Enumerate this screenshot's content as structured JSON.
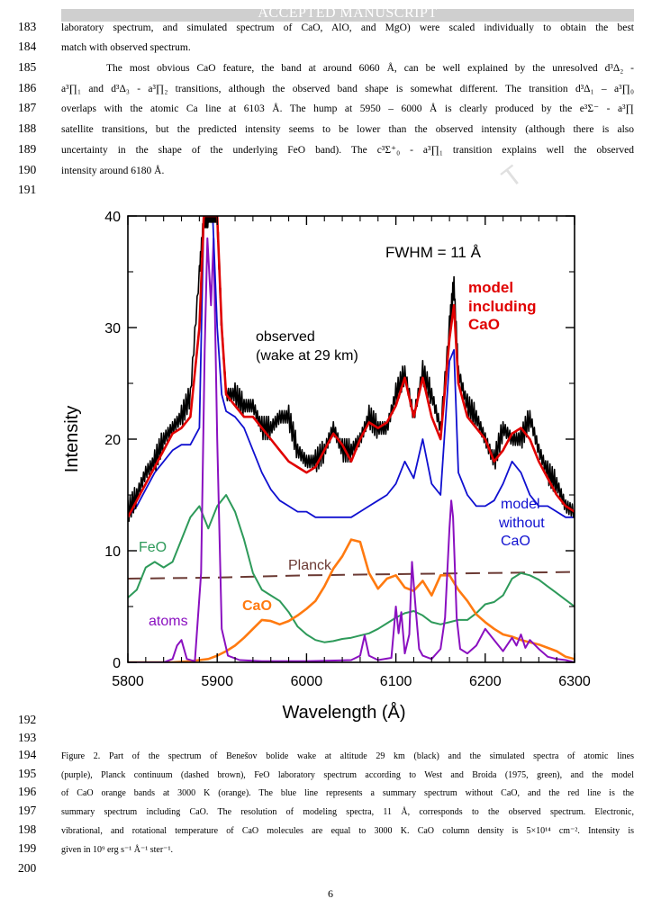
{
  "header": {
    "banner": "ACCEPTED MANUSCRIPT"
  },
  "body_lines": [
    {
      "num": "183",
      "text": "laboratory spectrum, and simulated spectrum of CaO, AlO, and MgO) were scaled individually to obtain the best"
    },
    {
      "num": "184",
      "text": "match with observed spectrum."
    },
    {
      "num": "185",
      "text": "The most obvious CaO feature, the band at around 6060 Å, can be well explained by the unresolved d³Δ₂ -"
    },
    {
      "num": "186",
      "text": "a³∏₁ and d³Δ₃ - a³∏₂ transitions, although the observed band shape is somewhat different. The transition d³Δ₁ – a³∏₀"
    },
    {
      "num": "187",
      "text": "overlaps with the atomic Ca line at 6103 Å. The hump at 5950 – 6000 Å is clearly produced by the e³Σ⁻ - a³∏"
    },
    {
      "num": "188",
      "text": "satellite transitions, but the predicted intensity seems to be lower than the observed intensity (although there is also"
    },
    {
      "num": "189",
      "text": "uncertainty in the shape of the underlying FeO band). The c³Σ⁺₀ - a³∏₁ transition explains well the observed"
    },
    {
      "num": "190",
      "text": "intensity around 6180 Å."
    },
    {
      "num": "191",
      "text": ""
    }
  ],
  "figure_lines": {
    "n192": "192",
    "n193": "193"
  },
  "caption_lines": [
    {
      "num": "194",
      "text": "Figure 2. Part of the spectrum of Benešov bolide wake at altitude 29 km (black) and the simulated spectra of atomic lines"
    },
    {
      "num": "195",
      "text": "(purple), Planck continuum (dashed brown), FeO laboratory spectrum according to West and Broida (1975, green), and the model"
    },
    {
      "num": "196",
      "text": "of CaO orange bands at 3000 K (orange). The blue line represents a summary spectrum without CaO, and the red line is the"
    },
    {
      "num": "197",
      "text": "summary spectrum including CaO. The resolution of modeling spectra, 11 Å, corresponds to the observed spectrum. Electronic,"
    },
    {
      "num": "198",
      "text": "vibrational, and rotational temperature of CaO molecules are equal to 3000 K. CaO column density is 5×10¹⁴ cm⁻². Intensity is"
    },
    {
      "num": "199",
      "text": "given in 10⁹ erg s⁻¹ Å⁻¹ ster⁻¹."
    },
    {
      "num": "200",
      "text": ""
    }
  ],
  "page_number": "6",
  "chart_data": {
    "type": "line",
    "xlabel": "Wavelength (Å)",
    "ylabel": "Intensity",
    "xlim": [
      5800,
      6300
    ],
    "ylim": [
      0,
      40
    ],
    "xticks": [
      "5800",
      "5900",
      "6000",
      "6100",
      "6200",
      "6300"
    ],
    "yticks": [
      "0",
      "10",
      "20",
      "30",
      "40"
    ],
    "annotations": {
      "fwhm": "FWHM = 11 Å",
      "observed": [
        "observed",
        "(wake at 29 km)"
      ],
      "model_cao": [
        "model",
        "including",
        "CaO"
      ],
      "model_nocao": [
        "model",
        "without",
        "CaO"
      ],
      "feo": "FeO",
      "planck": "Planck",
      "cao": "CaO",
      "atoms": "atoms"
    },
    "colors": {
      "observed": "#000000",
      "with_cao": "#e00000",
      "without_cao": "#1010d0",
      "feo": "#2e9a5a",
      "planck": "#6b3a34",
      "cao": "#ff7a10",
      "atoms": "#8a10c0"
    },
    "series": [
      {
        "key": "observed",
        "x": [
          5800,
          5810,
          5820,
          5830,
          5840,
          5850,
          5860,
          5870,
          5880,
          5885,
          5890,
          5895,
          5900,
          5905,
          5910,
          5920,
          5930,
          5940,
          5950,
          5960,
          5970,
          5980,
          5990,
          6000,
          6010,
          6020,
          6030,
          6040,
          6050,
          6060,
          6070,
          6080,
          6090,
          6100,
          6110,
          6120,
          6130,
          6140,
          6150,
          6160,
          6165,
          6170,
          6180,
          6190,
          6200,
          6210,
          6220,
          6230,
          6240,
          6250,
          6260,
          6270,
          6280,
          6290,
          6300
        ],
        "y": [
          13.5,
          15,
          17,
          18,
          20,
          21,
          22,
          24,
          35,
          40,
          40,
          40,
          40,
          30,
          24,
          24,
          23,
          23,
          21,
          21,
          22,
          22,
          19,
          18,
          18,
          19,
          21,
          19,
          19,
          20,
          22,
          21,
          21,
          24,
          26,
          22,
          26,
          24,
          21,
          30,
          34,
          26,
          23,
          22,
          20,
          18,
          21,
          20,
          20,
          22,
          19,
          17,
          16,
          14,
          13.5
        ]
      },
      {
        "key": "with_cao",
        "x": [
          5800,
          5810,
          5820,
          5830,
          5840,
          5850,
          5860,
          5870,
          5880,
          5885,
          5890,
          5895,
          5900,
          5905,
          5910,
          5920,
          5930,
          5940,
          5950,
          5960,
          5970,
          5980,
          5990,
          6000,
          6010,
          6020,
          6030,
          6040,
          6050,
          6060,
          6070,
          6080,
          6090,
          6100,
          6110,
          6120,
          6130,
          6140,
          6150,
          6160,
          6165,
          6170,
          6180,
          6190,
          6200,
          6210,
          6220,
          6230,
          6240,
          6250,
          6260,
          6270,
          6280,
          6290,
          6300
        ],
        "y": [
          13,
          14.5,
          16,
          17.5,
          19,
          20.5,
          21,
          22,
          30,
          40,
          40,
          40,
          40,
          30,
          24,
          23,
          22,
          22,
          21,
          20,
          19,
          18,
          17.5,
          17,
          17.5,
          19,
          20.5,
          19.5,
          18,
          20,
          21.5,
          21,
          21.5,
          23,
          25.5,
          22,
          25.5,
          22,
          20,
          29,
          32,
          25,
          22,
          21,
          20,
          18,
          19,
          20.5,
          21,
          20,
          18,
          16.5,
          15,
          14,
          13.5
        ]
      },
      {
        "key": "without_cao",
        "x": [
          5800,
          5810,
          5820,
          5830,
          5840,
          5850,
          5860,
          5870,
          5880,
          5885,
          5890,
          5895,
          5900,
          5905,
          5910,
          5920,
          5930,
          5940,
          5950,
          5960,
          5970,
          5980,
          5990,
          6000,
          6010,
          6020,
          6030,
          6040,
          6050,
          6060,
          6070,
          6080,
          6090,
          6100,
          6110,
          6120,
          6130,
          6140,
          6150,
          6160,
          6165,
          6170,
          6180,
          6190,
          6200,
          6210,
          6220,
          6230,
          6240,
          6250,
          6260,
          6270,
          6280,
          6290,
          6300
        ],
        "y": [
          13,
          14,
          15.5,
          17,
          18,
          19,
          19.5,
          19.5,
          21,
          40,
          40,
          40,
          30,
          24,
          22.5,
          22,
          21,
          19,
          17,
          15.5,
          14.5,
          14,
          13.5,
          13.5,
          13,
          13,
          13,
          13,
          13,
          13.5,
          14,
          14.5,
          15,
          16,
          18,
          16.5,
          20,
          16,
          15,
          27,
          28,
          17,
          15,
          14,
          14,
          14.5,
          16,
          18,
          17,
          15,
          14,
          14,
          13.5,
          13,
          13
        ]
      },
      {
        "key": "feo",
        "x": [
          5800,
          5810,
          5820,
          5830,
          5840,
          5850,
          5860,
          5870,
          5880,
          5890,
          5900,
          5910,
          5920,
          5930,
          5940,
          5950,
          5960,
          5970,
          5980,
          5990,
          6000,
          6010,
          6020,
          6030,
          6040,
          6050,
          6060,
          6070,
          6080,
          6090,
          6100,
          6110,
          6120,
          6130,
          6140,
          6150,
          6160,
          6170,
          6180,
          6190,
          6200,
          6210,
          6220,
          6230,
          6240,
          6250,
          6260,
          6270,
          6280,
          6290,
          6300
        ],
        "y": [
          5.8,
          6.5,
          8.5,
          9,
          8.5,
          9,
          11,
          13,
          14,
          12,
          14,
          15,
          13.5,
          11,
          8,
          6.5,
          6,
          5.5,
          4.5,
          3.2,
          2.5,
          2,
          1.8,
          1.9,
          2.1,
          2.2,
          2.4,
          2.6,
          3,
          3.5,
          4,
          4.4,
          4.6,
          4.2,
          3.6,
          3.4,
          3.6,
          3.8,
          3.8,
          4.4,
          5.2,
          5.4,
          6,
          7.5,
          8,
          7.8,
          7.4,
          6.8,
          6.2,
          5.6,
          5
        ]
      },
      {
        "key": "planck",
        "x": [
          5800,
          5900,
          6000,
          6100,
          6200,
          6300
        ],
        "y": [
          7.5,
          7.6,
          7.8,
          7.9,
          8.0,
          8.1
        ]
      },
      {
        "key": "cao",
        "x": [
          5800,
          5810,
          5820,
          5830,
          5840,
          5850,
          5860,
          5870,
          5880,
          5890,
          5900,
          5910,
          5920,
          5930,
          5940,
          5950,
          5960,
          5970,
          5980,
          5990,
          6000,
          6010,
          6020,
          6030,
          6040,
          6050,
          6060,
          6070,
          6080,
          6090,
          6100,
          6110,
          6120,
          6130,
          6140,
          6150,
          6160,
          6170,
          6180,
          6190,
          6200,
          6210,
          6220,
          6230,
          6240,
          6250,
          6260,
          6270,
          6280,
          6290,
          6300
        ],
        "y": [
          0,
          0,
          0,
          0,
          0,
          0,
          0.05,
          0.1,
          0.2,
          0.3,
          0.6,
          1,
          1.5,
          2.2,
          3,
          3.8,
          3.7,
          3.4,
          3.7,
          4.2,
          4.8,
          5.5,
          6.8,
          8.4,
          9.5,
          11,
          10.8,
          8,
          6.6,
          7.5,
          7.8,
          6.7,
          6.4,
          7.3,
          6,
          7.8,
          7.8,
          6.5,
          5.5,
          4.3,
          3.6,
          3,
          2.5,
          2.3,
          2,
          1.8,
          1.6,
          1.3,
          1,
          0.5,
          0.3
        ]
      },
      {
        "key": "atoms",
        "x": [
          5800,
          5840,
          5850,
          5855,
          5860,
          5866,
          5875,
          5882,
          5886,
          5889,
          5893,
          5896,
          5900,
          5905,
          5912,
          5925,
          5950,
          6000,
          6050,
          6060,
          6065,
          6070,
          6080,
          6095,
          6100,
          6103,
          6106,
          6110,
          6115,
          6118,
          6122,
          6126,
          6130,
          6140,
          6150,
          6155,
          6160,
          6162,
          6164,
          6168,
          6172,
          6180,
          6190,
          6200,
          6210,
          6220,
          6230,
          6235,
          6240,
          6245,
          6250,
          6260,
          6270,
          6280,
          6290,
          6300
        ],
        "y": [
          0,
          0,
          0.3,
          1.5,
          2,
          0.3,
          0.1,
          8,
          28,
          38,
          32,
          38,
          20,
          3,
          0.6,
          0.2,
          0.1,
          0.1,
          0.2,
          0.6,
          2.4,
          0.6,
          0.2,
          0.4,
          5,
          2.6,
          4.5,
          0.8,
          2.5,
          9,
          5,
          1.2,
          0.6,
          0.3,
          1.2,
          4,
          12,
          14.5,
          13,
          4,
          1.2,
          0.8,
          1.5,
          3,
          2,
          1,
          2.2,
          1.5,
          2.5,
          1.3,
          2,
          1.2,
          0.5,
          0.3,
          0.2,
          0
        ]
      }
    ]
  }
}
